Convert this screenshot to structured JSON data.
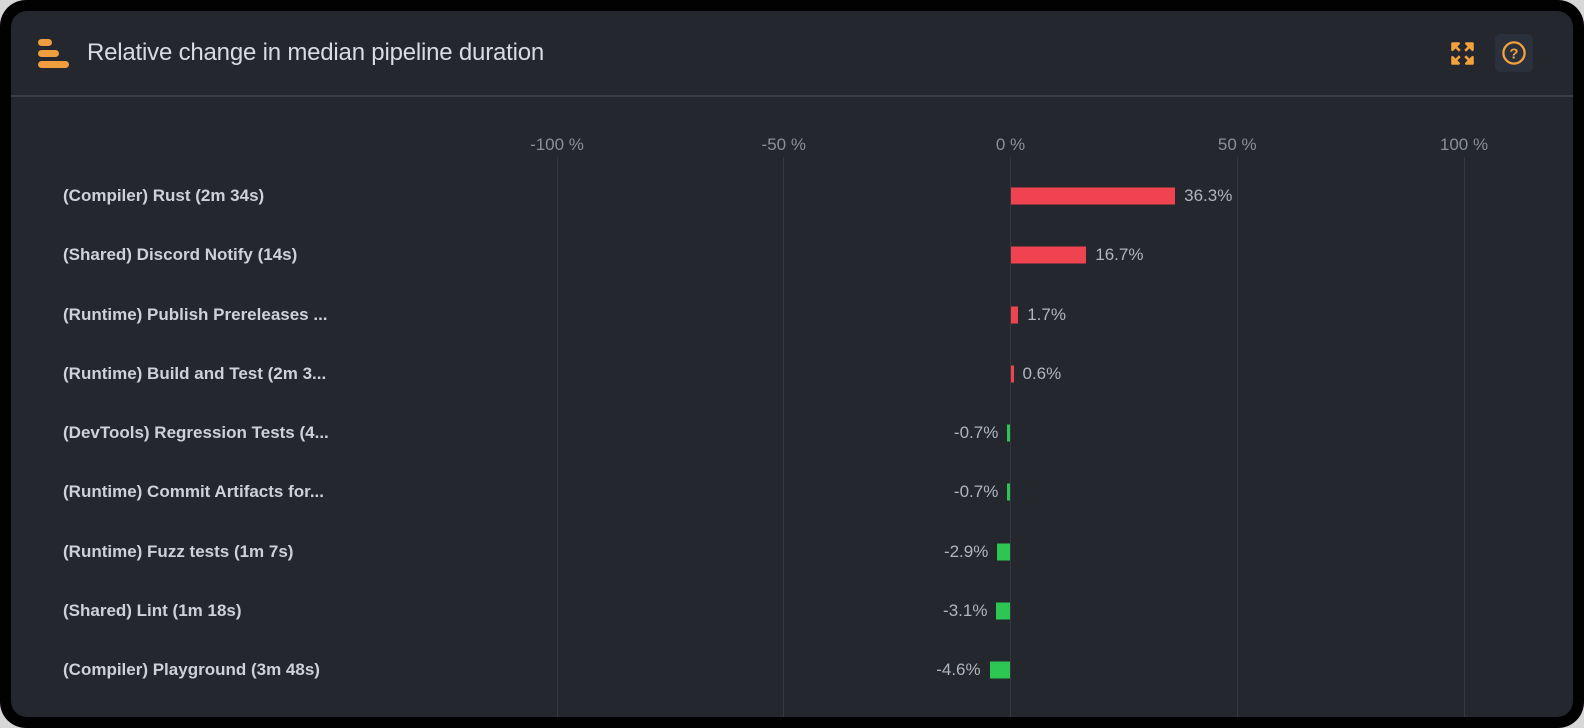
{
  "panel": {
    "title": "Relative change in median pipeline duration",
    "header_icons": {
      "logo": "bar-chart-logo",
      "expand": "expand-fullscreen",
      "help": "help-question"
    },
    "accent_orange": "#f2a13c"
  },
  "chart_data": {
    "type": "bar",
    "orientation": "horizontal",
    "title": "Relative change in median pipeline duration",
    "categories": [
      "(Compiler) Rust (2m 34s)",
      "(Shared) Discord Notify (14s)",
      "(Runtime) Publish Prereleases ...",
      "(Runtime) Build and Test (2m 3...",
      "(DevTools) Regression Tests (4...",
      "(Runtime) Commit Artifacts for...",
      "(Runtime) Fuzz tests (1m 7s)",
      "(Shared) Lint (1m 18s)",
      "(Compiler) Playground (3m 48s)"
    ],
    "values": [
      36.3,
      16.7,
      1.7,
      0.6,
      -0.7,
      -0.7,
      -2.9,
      -3.1,
      -4.6
    ],
    "value_labels": [
      "36.3%",
      "16.7%",
      "1.7%",
      "0.6%",
      "-0.7%",
      "-0.7%",
      "-2.9%",
      "-3.1%",
      "-4.6%"
    ],
    "x_axis": {
      "tick_values": [
        -100,
        -50,
        0,
        50,
        100
      ],
      "tick_labels": [
        "-100 %",
        "-50 %",
        "0 %",
        "50 %",
        "100 %"
      ],
      "range": [
        -100,
        100
      ],
      "unit": "%"
    },
    "colors": {
      "positive": "#ef4350",
      "negative": "#2ec653"
    },
    "grid": true,
    "legend": false
  }
}
